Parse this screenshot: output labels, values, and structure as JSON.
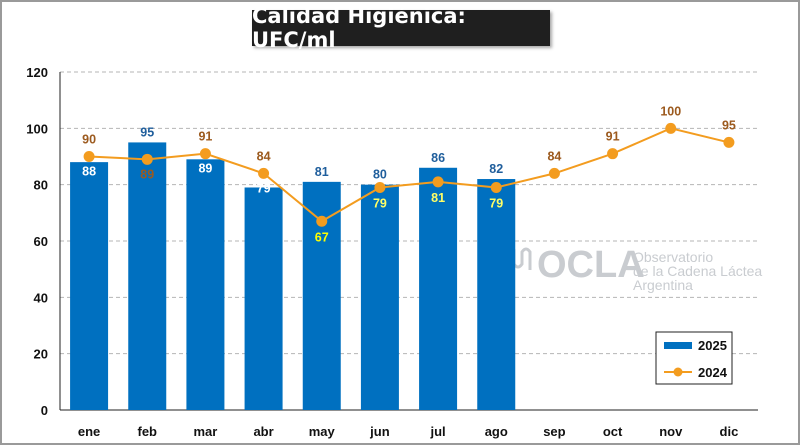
{
  "chart_data": {
    "type": "bar",
    "title": "Calidad Higiénica: UFC/ml",
    "categories": [
      "ene",
      "feb",
      "mar",
      "abr",
      "may",
      "jun",
      "jul",
      "ago",
      "sep",
      "oct",
      "nov",
      "dic"
    ],
    "series": [
      {
        "name": "2025",
        "type": "bar",
        "color": "#0070c0",
        "values": [
          88,
          95,
          89,
          79,
          81,
          80,
          86,
          82,
          null,
          null,
          null,
          null
        ]
      },
      {
        "name": "2024",
        "type": "line",
        "color": "#f39c1f",
        "values": [
          90,
          89,
          91,
          84,
          67,
          79,
          81,
          79,
          84,
          91,
          100,
          95
        ]
      }
    ],
    "ylim": [
      0,
      120
    ],
    "yticks": [
      0,
      20,
      40,
      60,
      80,
      100,
      120
    ],
    "grid": true,
    "legend_position": "bottom-right"
  },
  "watermark": {
    "brand": "OCLA",
    "line1": "Observatorio",
    "line2": "de la Cadena Láctea",
    "line3": "Argentina"
  }
}
